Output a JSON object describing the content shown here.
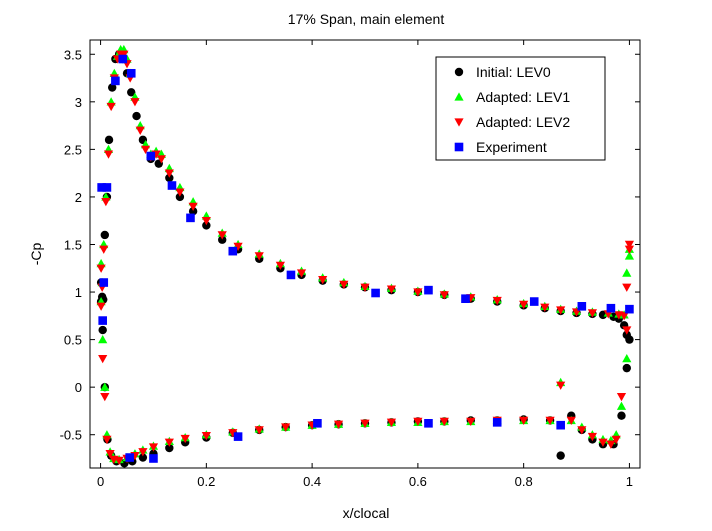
{
  "chart_data": {
    "type": "scatter",
    "title": "17% Span, main element",
    "xlabel": "x/clocal",
    "ylabel": "-Cp",
    "xlim": [
      -0.02,
      1.02
    ],
    "ylim": [
      -0.85,
      3.65
    ],
    "xticks": [
      0,
      0.2,
      0.4,
      0.6,
      0.8,
      1
    ],
    "xtick_labels": [
      "0",
      "0.2",
      "0.4",
      "0.6",
      "0.8",
      "1"
    ],
    "yticks": [
      -0.5,
      0,
      0.5,
      1,
      1.5,
      2,
      2.5,
      3,
      3.5
    ],
    "ytick_labels": [
      "-0.5",
      "0",
      "0.5",
      "1",
      "1.5",
      "2",
      "2.5",
      "3",
      "3.5"
    ],
    "grid": false,
    "legend_position": "top-right",
    "series": [
      {
        "name": "Initial: LEV0",
        "marker": "circle",
        "color": "#000000",
        "x": [
          0.001,
          0.003,
          0.005,
          0.008,
          0.012,
          0.016,
          0.022,
          0.028,
          0.035,
          0.042,
          0.05,
          0.058,
          0.068,
          0.08,
          0.095,
          0.11,
          0.13,
          0.15,
          0.175,
          0.2,
          0.23,
          0.26,
          0.3,
          0.34,
          0.38,
          0.42,
          0.46,
          0.5,
          0.55,
          0.6,
          0.65,
          0.7,
          0.75,
          0.8,
          0.84,
          0.87,
          0.9,
          0.93,
          0.95,
          0.97,
          0.98,
          0.99,
          0.995,
          1.0,
          0.001,
          0.004,
          0.008,
          0.013,
          0.02,
          0.03,
          0.045,
          0.06,
          0.08,
          0.1,
          0.13,
          0.16,
          0.2,
          0.25,
          0.3,
          0.35,
          0.4,
          0.45,
          0.5,
          0.55,
          0.6,
          0.65,
          0.7,
          0.75,
          0.8,
          0.85,
          0.87,
          0.89,
          0.91,
          0.93,
          0.95,
          0.97,
          0.985,
          0.995
        ],
        "y": [
          1.1,
          0.95,
          0.92,
          1.6,
          2.0,
          2.6,
          3.15,
          3.45,
          3.5,
          3.45,
          3.3,
          3.1,
          2.85,
          2.6,
          2.4,
          2.35,
          2.2,
          2.0,
          1.85,
          1.7,
          1.55,
          1.45,
          1.35,
          1.25,
          1.18,
          1.12,
          1.08,
          1.05,
          1.02,
          1.0,
          0.97,
          0.93,
          0.9,
          0.86,
          0.83,
          0.8,
          0.78,
          0.77,
          0.76,
          0.74,
          0.72,
          0.65,
          0.55,
          0.5,
          0.9,
          0.6,
          0.0,
          -0.55,
          -0.72,
          -0.78,
          -0.8,
          -0.78,
          -0.74,
          -0.7,
          -0.64,
          -0.58,
          -0.53,
          -0.48,
          -0.45,
          -0.42,
          -0.4,
          -0.39,
          -0.38,
          -0.37,
          -0.36,
          -0.36,
          -0.35,
          -0.35,
          -0.34,
          -0.35,
          -0.72,
          -0.3,
          -0.45,
          -0.55,
          -0.6,
          -0.6,
          -0.3,
          0.2
        ]
      },
      {
        "name": "Adapted: LEV1",
        "marker": "triangle-up",
        "color": "#00ff00",
        "x": [
          0.001,
          0.003,
          0.006,
          0.01,
          0.015,
          0.02,
          0.026,
          0.032,
          0.038,
          0.044,
          0.05,
          0.056,
          0.065,
          0.075,
          0.085,
          0.095,
          0.105,
          0.115,
          0.13,
          0.15,
          0.175,
          0.2,
          0.23,
          0.26,
          0.3,
          0.34,
          0.38,
          0.42,
          0.46,
          0.5,
          0.55,
          0.6,
          0.65,
          0.7,
          0.75,
          0.8,
          0.84,
          0.87,
          0.9,
          0.93,
          0.96,
          0.98,
          0.99,
          0.995,
          1.0,
          1.0,
          0.001,
          0.004,
          0.008,
          0.012,
          0.018,
          0.025,
          0.035,
          0.05,
          0.065,
          0.08,
          0.1,
          0.13,
          0.16,
          0.2,
          0.25,
          0.3,
          0.35,
          0.4,
          0.45,
          0.5,
          0.55,
          0.6,
          0.65,
          0.7,
          0.75,
          0.8,
          0.85,
          0.87,
          0.89,
          0.91,
          0.93,
          0.95,
          0.965,
          0.975,
          0.985,
          0.995
        ],
        "y": [
          1.3,
          1.1,
          1.5,
          2.0,
          2.5,
          3.0,
          3.3,
          3.48,
          3.55,
          3.55,
          3.45,
          3.3,
          3.05,
          2.75,
          2.55,
          2.45,
          2.48,
          2.45,
          2.3,
          2.1,
          1.95,
          1.8,
          1.62,
          1.5,
          1.4,
          1.3,
          1.22,
          1.15,
          1.1,
          1.06,
          1.04,
          1.01,
          0.98,
          0.95,
          0.92,
          0.88,
          0.85,
          0.82,
          0.8,
          0.79,
          0.78,
          0.77,
          0.76,
          1.2,
          1.38,
          1.45,
          0.9,
          0.5,
          0.0,
          -0.5,
          -0.68,
          -0.75,
          -0.76,
          -0.74,
          -0.7,
          -0.66,
          -0.62,
          -0.57,
          -0.53,
          -0.5,
          -0.47,
          -0.44,
          -0.42,
          -0.4,
          -0.39,
          -0.38,
          -0.37,
          -0.37,
          -0.36,
          -0.36,
          -0.35,
          -0.35,
          -0.35,
          0.05,
          -0.35,
          -0.42,
          -0.5,
          -0.55,
          -0.56,
          -0.5,
          -0.2,
          0.3
        ]
      },
      {
        "name": "Adapted: LEV2",
        "marker": "triangle-down",
        "color": "#ff0000",
        "x": [
          0.001,
          0.003,
          0.006,
          0.01,
          0.015,
          0.02,
          0.026,
          0.032,
          0.038,
          0.044,
          0.05,
          0.056,
          0.065,
          0.075,
          0.085,
          0.095,
          0.105,
          0.115,
          0.13,
          0.15,
          0.175,
          0.2,
          0.23,
          0.26,
          0.3,
          0.34,
          0.38,
          0.42,
          0.46,
          0.5,
          0.55,
          0.6,
          0.65,
          0.7,
          0.75,
          0.8,
          0.84,
          0.87,
          0.9,
          0.93,
          0.96,
          0.98,
          0.99,
          0.995,
          1.0,
          1.0,
          0.001,
          0.004,
          0.008,
          0.012,
          0.018,
          0.025,
          0.035,
          0.05,
          0.065,
          0.08,
          0.1,
          0.13,
          0.16,
          0.2,
          0.25,
          0.3,
          0.35,
          0.4,
          0.45,
          0.5,
          0.55,
          0.6,
          0.65,
          0.7,
          0.75,
          0.8,
          0.85,
          0.87,
          0.89,
          0.91,
          0.93,
          0.95,
          0.965,
          0.975,
          0.985,
          0.995
        ],
        "y": [
          1.25,
          1.05,
          1.45,
          1.95,
          2.45,
          2.95,
          3.25,
          3.45,
          3.5,
          3.5,
          3.4,
          3.25,
          3.0,
          2.7,
          2.5,
          2.42,
          2.45,
          2.4,
          2.25,
          2.05,
          1.9,
          1.75,
          1.6,
          1.48,
          1.38,
          1.28,
          1.2,
          1.13,
          1.08,
          1.05,
          1.03,
          1.0,
          0.97,
          0.94,
          0.91,
          0.87,
          0.84,
          0.81,
          0.79,
          0.78,
          0.77,
          0.76,
          0.75,
          1.05,
          1.45,
          1.5,
          0.85,
          0.3,
          -0.1,
          -0.55,
          -0.7,
          -0.76,
          -0.77,
          -0.75,
          -0.72,
          -0.68,
          -0.63,
          -0.58,
          -0.54,
          -0.51,
          -0.48,
          -0.45,
          -0.42,
          -0.4,
          -0.39,
          -0.38,
          -0.37,
          -0.36,
          -0.36,
          -0.36,
          -0.35,
          -0.35,
          -0.35,
          0.02,
          -0.35,
          -0.45,
          -0.52,
          -0.58,
          -0.6,
          -0.55,
          -0.1,
          0.6
        ]
      },
      {
        "name": "Experiment",
        "marker": "square",
        "color": "#0000ff",
        "x": [
          0.002,
          0.006,
          0.012,
          0.028,
          0.042,
          0.058,
          0.095,
          0.135,
          0.17,
          0.25,
          0.36,
          0.52,
          0.62,
          0.69,
          0.82,
          0.91,
          0.965,
          1.0,
          0.004,
          0.055,
          0.1,
          0.26,
          0.41,
          0.62,
          0.75,
          0.87
        ],
        "y": [
          2.1,
          1.1,
          2.1,
          3.22,
          3.45,
          3.3,
          2.43,
          2.12,
          1.78,
          1.43,
          1.18,
          0.99,
          1.02,
          0.93,
          0.9,
          0.85,
          0.83,
          0.82,
          0.7,
          -0.74,
          -0.75,
          -0.52,
          -0.38,
          -0.38,
          -0.37,
          -0.4
        ]
      }
    ]
  }
}
